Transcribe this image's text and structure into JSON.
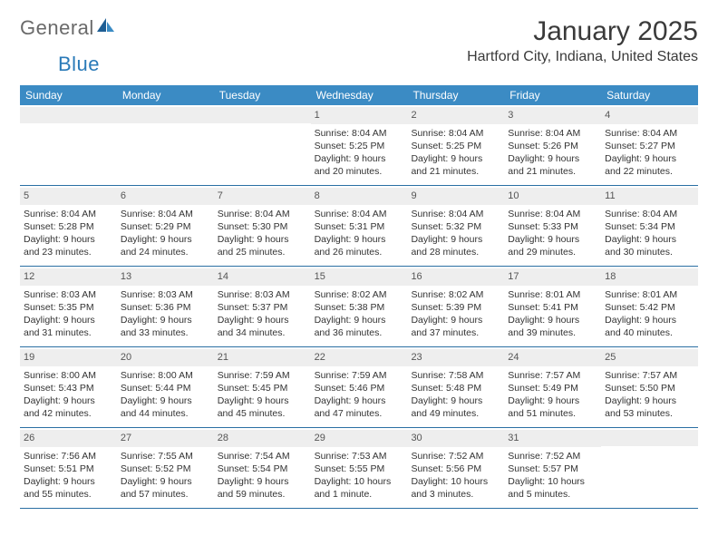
{
  "logo": {
    "text1": "General",
    "text2": "Blue"
  },
  "title": "January 2025",
  "location": "Hartford City, Indiana, United States",
  "header_color": "#3b8bc4",
  "border_color": "#2a6fa3",
  "daynum_bg": "#eeeeee",
  "weekdays": [
    "Sunday",
    "Monday",
    "Tuesday",
    "Wednesday",
    "Thursday",
    "Friday",
    "Saturday"
  ],
  "weeks": [
    [
      {
        "n": "",
        "empty": true
      },
      {
        "n": "",
        "empty": true
      },
      {
        "n": "",
        "empty": true
      },
      {
        "n": "1",
        "sr": "8:04 AM",
        "ss": "5:25 PM",
        "dl": "9 hours and 20 minutes."
      },
      {
        "n": "2",
        "sr": "8:04 AM",
        "ss": "5:25 PM",
        "dl": "9 hours and 21 minutes."
      },
      {
        "n": "3",
        "sr": "8:04 AM",
        "ss": "5:26 PM",
        "dl": "9 hours and 21 minutes."
      },
      {
        "n": "4",
        "sr": "8:04 AM",
        "ss": "5:27 PM",
        "dl": "9 hours and 22 minutes."
      }
    ],
    [
      {
        "n": "5",
        "sr": "8:04 AM",
        "ss": "5:28 PM",
        "dl": "9 hours and 23 minutes."
      },
      {
        "n": "6",
        "sr": "8:04 AM",
        "ss": "5:29 PM",
        "dl": "9 hours and 24 minutes."
      },
      {
        "n": "7",
        "sr": "8:04 AM",
        "ss": "5:30 PM",
        "dl": "9 hours and 25 minutes."
      },
      {
        "n": "8",
        "sr": "8:04 AM",
        "ss": "5:31 PM",
        "dl": "9 hours and 26 minutes."
      },
      {
        "n": "9",
        "sr": "8:04 AM",
        "ss": "5:32 PM",
        "dl": "9 hours and 28 minutes."
      },
      {
        "n": "10",
        "sr": "8:04 AM",
        "ss": "5:33 PM",
        "dl": "9 hours and 29 minutes."
      },
      {
        "n": "11",
        "sr": "8:04 AM",
        "ss": "5:34 PM",
        "dl": "9 hours and 30 minutes."
      }
    ],
    [
      {
        "n": "12",
        "sr": "8:03 AM",
        "ss": "5:35 PM",
        "dl": "9 hours and 31 minutes."
      },
      {
        "n": "13",
        "sr": "8:03 AM",
        "ss": "5:36 PM",
        "dl": "9 hours and 33 minutes."
      },
      {
        "n": "14",
        "sr": "8:03 AM",
        "ss": "5:37 PM",
        "dl": "9 hours and 34 minutes."
      },
      {
        "n": "15",
        "sr": "8:02 AM",
        "ss": "5:38 PM",
        "dl": "9 hours and 36 minutes."
      },
      {
        "n": "16",
        "sr": "8:02 AM",
        "ss": "5:39 PM",
        "dl": "9 hours and 37 minutes."
      },
      {
        "n": "17",
        "sr": "8:01 AM",
        "ss": "5:41 PM",
        "dl": "9 hours and 39 minutes."
      },
      {
        "n": "18",
        "sr": "8:01 AM",
        "ss": "5:42 PM",
        "dl": "9 hours and 40 minutes."
      }
    ],
    [
      {
        "n": "19",
        "sr": "8:00 AM",
        "ss": "5:43 PM",
        "dl": "9 hours and 42 minutes."
      },
      {
        "n": "20",
        "sr": "8:00 AM",
        "ss": "5:44 PM",
        "dl": "9 hours and 44 minutes."
      },
      {
        "n": "21",
        "sr": "7:59 AM",
        "ss": "5:45 PM",
        "dl": "9 hours and 45 minutes."
      },
      {
        "n": "22",
        "sr": "7:59 AM",
        "ss": "5:46 PM",
        "dl": "9 hours and 47 minutes."
      },
      {
        "n": "23",
        "sr": "7:58 AM",
        "ss": "5:48 PM",
        "dl": "9 hours and 49 minutes."
      },
      {
        "n": "24",
        "sr": "7:57 AM",
        "ss": "5:49 PM",
        "dl": "9 hours and 51 minutes."
      },
      {
        "n": "25",
        "sr": "7:57 AM",
        "ss": "5:50 PM",
        "dl": "9 hours and 53 minutes."
      }
    ],
    [
      {
        "n": "26",
        "sr": "7:56 AM",
        "ss": "5:51 PM",
        "dl": "9 hours and 55 minutes."
      },
      {
        "n": "27",
        "sr": "7:55 AM",
        "ss": "5:52 PM",
        "dl": "9 hours and 57 minutes."
      },
      {
        "n": "28",
        "sr": "7:54 AM",
        "ss": "5:54 PM",
        "dl": "9 hours and 59 minutes."
      },
      {
        "n": "29",
        "sr": "7:53 AM",
        "ss": "5:55 PM",
        "dl": "10 hours and 1 minute."
      },
      {
        "n": "30",
        "sr": "7:52 AM",
        "ss": "5:56 PM",
        "dl": "10 hours and 3 minutes."
      },
      {
        "n": "31",
        "sr": "7:52 AM",
        "ss": "5:57 PM",
        "dl": "10 hours and 5 minutes."
      },
      {
        "n": "",
        "empty": true
      }
    ]
  ],
  "labels": {
    "sunrise": "Sunrise:",
    "sunset": "Sunset:",
    "daylight": "Daylight:"
  }
}
